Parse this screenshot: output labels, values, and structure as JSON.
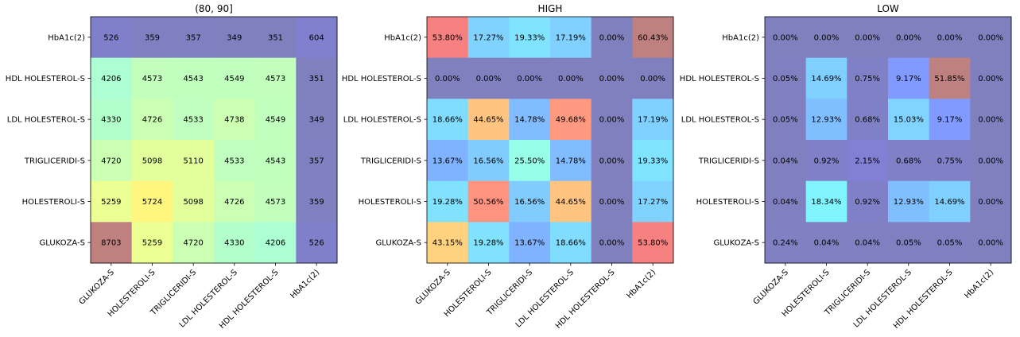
{
  "chart_data": [
    {
      "type": "heatmap",
      "title": "(80, 90]",
      "x_labels": [
        "GLUKOZA-S",
        "HOLESTEROLI-S",
        "TRIGLICERIDI-S",
        "LDL HOLESTEROL-S",
        "HDL HOLESTEROL-S",
        "HbA1c(2)"
      ],
      "y_labels": [
        "HbA1c(2)",
        "HDL HOLESTEROL-S",
        "LDL HOLESTEROL-S",
        "TRIGLICERIDI-S",
        "HOLESTEROLI-S",
        "GLUKOZA-S"
      ],
      "labels": [
        [
          "526",
          "359",
          "357",
          "349",
          "351",
          "604"
        ],
        [
          "4206",
          "4573",
          "4543",
          "4549",
          "4573",
          "351"
        ],
        [
          "4330",
          "4726",
          "4533",
          "4738",
          "4549",
          "349"
        ],
        [
          "4720",
          "5098",
          "5110",
          "4533",
          "4543",
          "357"
        ],
        [
          "5259",
          "5724",
          "5098",
          "4726",
          "4573",
          "359"
        ],
        [
          "8703",
          "5259",
          "4720",
          "4330",
          "4206",
          "526"
        ]
      ],
      "values": [
        [
          526,
          359,
          357,
          349,
          351,
          604
        ],
        [
          4206,
          4573,
          4543,
          4549,
          4573,
          351
        ],
        [
          4330,
          4726,
          4533,
          4738,
          4549,
          349
        ],
        [
          4720,
          5098,
          5110,
          4533,
          4543,
          357
        ],
        [
          5259,
          5724,
          5098,
          4726,
          4573,
          359
        ],
        [
          8703,
          5259,
          4720,
          4330,
          4206,
          526
        ]
      ],
      "vmin": 349,
      "vmax": 8703,
      "colormap": "jet",
      "alpha": 0.5
    },
    {
      "type": "heatmap",
      "title": "HIGH",
      "x_labels": [
        "GLUKOZA-S",
        "HOLESTEROLI-S",
        "TRIGLICERIDI-S",
        "LDL HOLESTEROL-S",
        "HDL HOLESTEROL-S",
        "HbA1c(2)"
      ],
      "y_labels": [
        "HbA1c(2)",
        "HDL HOLESTEROL-S",
        "LDL HOLESTEROL-S",
        "TRIGLICERIDI-S",
        "HOLESTEROLI-S",
        "GLUKOZA-S"
      ],
      "labels": [
        [
          "53.80%",
          "17.27%",
          "19.33%",
          "17.19%",
          "0.00%",
          "60.43%"
        ],
        [
          "0.00%",
          "0.00%",
          "0.00%",
          "0.00%",
          "0.00%",
          "0.00%"
        ],
        [
          "18.66%",
          "44.65%",
          "14.78%",
          "49.68%",
          "0.00%",
          "17.19%"
        ],
        [
          "13.67%",
          "16.56%",
          "25.50%",
          "14.78%",
          "0.00%",
          "19.33%"
        ],
        [
          "19.28%",
          "50.56%",
          "16.56%",
          "44.65%",
          "0.00%",
          "17.27%"
        ],
        [
          "43.15%",
          "19.28%",
          "13.67%",
          "18.66%",
          "0.00%",
          "53.80%"
        ]
      ],
      "values": [
        [
          53.8,
          17.27,
          19.33,
          17.19,
          0.0,
          60.43
        ],
        [
          0.0,
          0.0,
          0.0,
          0.0,
          0.0,
          0.0
        ],
        [
          18.66,
          44.65,
          14.78,
          49.68,
          0.0,
          17.19
        ],
        [
          13.67,
          16.56,
          25.5,
          14.78,
          0.0,
          19.33
        ],
        [
          19.28,
          50.56,
          16.56,
          44.65,
          0.0,
          17.27
        ],
        [
          43.15,
          19.28,
          13.67,
          18.66,
          0.0,
          53.8
        ]
      ],
      "vmin": 0,
      "vmax": 60.43,
      "colormap": "jet",
      "alpha": 0.5
    },
    {
      "type": "heatmap",
      "title": "LOW",
      "x_labels": [
        "GLUKOZA-S",
        "HOLESTEROLI-S",
        "TRIGLICERIDI-S",
        "LDL HOLESTEROL-S",
        "HDL HOLESTEROL-S",
        "HbA1c(2)"
      ],
      "y_labels": [
        "HbA1c(2)",
        "HDL HOLESTEROL-S",
        "LDL HOLESTEROL-S",
        "TRIGLICERIDI-S",
        "HOLESTEROLI-S",
        "GLUKOZA-S"
      ],
      "labels": [
        [
          "0.00%",
          "0.00%",
          "0.00%",
          "0.00%",
          "0.00%",
          "0.00%"
        ],
        [
          "0.05%",
          "14.69%",
          "0.75%",
          "9.17%",
          "51.85%",
          "0.00%"
        ],
        [
          "0.05%",
          "12.93%",
          "0.68%",
          "15.03%",
          "9.17%",
          "0.00%"
        ],
        [
          "0.04%",
          "0.92%",
          "2.15%",
          "0.68%",
          "0.75%",
          "0.00%"
        ],
        [
          "0.04%",
          "18.34%",
          "0.92%",
          "12.93%",
          "14.69%",
          "0.00%"
        ],
        [
          "0.24%",
          "0.04%",
          "0.04%",
          "0.05%",
          "0.05%",
          "0.00%"
        ]
      ],
      "values": [
        [
          0.0,
          0.0,
          0.0,
          0.0,
          0.0,
          0.0
        ],
        [
          0.05,
          14.69,
          0.75,
          9.17,
          51.85,
          0.0
        ],
        [
          0.05,
          12.93,
          0.68,
          15.03,
          9.17,
          0.0
        ],
        [
          0.04,
          0.92,
          2.15,
          0.68,
          0.75,
          0.0
        ],
        [
          0.04,
          18.34,
          0.92,
          12.93,
          14.69,
          0.0
        ],
        [
          0.24,
          0.04,
          0.04,
          0.05,
          0.05,
          0.0
        ]
      ],
      "vmin": 0,
      "vmax": 51.85,
      "colormap": "jet",
      "alpha": 0.5
    }
  ]
}
